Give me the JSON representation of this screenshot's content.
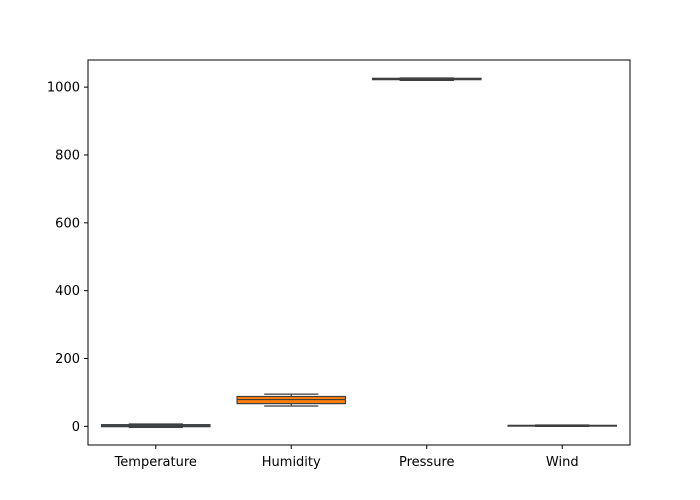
{
  "chart_data": {
    "type": "box",
    "title": "",
    "xlabel": "",
    "ylabel": "",
    "ylim": [
      -55,
      1080
    ],
    "yticks": [
      0,
      200,
      400,
      600,
      800,
      1000
    ],
    "grid": false,
    "legend": "none",
    "categories": [
      "Temperature",
      "Humidity",
      "Pressure",
      "Wind"
    ],
    "boxes": [
      {
        "name": "Temperature",
        "min": -3,
        "q1": -1,
        "median": 2,
        "q3": 5,
        "max": 7,
        "color": "#1f77b4"
      },
      {
        "name": "Humidity",
        "min": 60,
        "q1": 67,
        "median": 79,
        "q3": 88,
        "max": 95,
        "color": "#ff7f0e"
      },
      {
        "name": "Pressure",
        "min": 1020,
        "q1": 1022,
        "median": 1024,
        "q3": 1026,
        "max": 1027,
        "color": "#2ca02c"
      },
      {
        "name": "Wind",
        "min": 0,
        "q1": 1,
        "median": 2,
        "q3": 3,
        "max": 4,
        "color": "#d62728"
      }
    ]
  }
}
